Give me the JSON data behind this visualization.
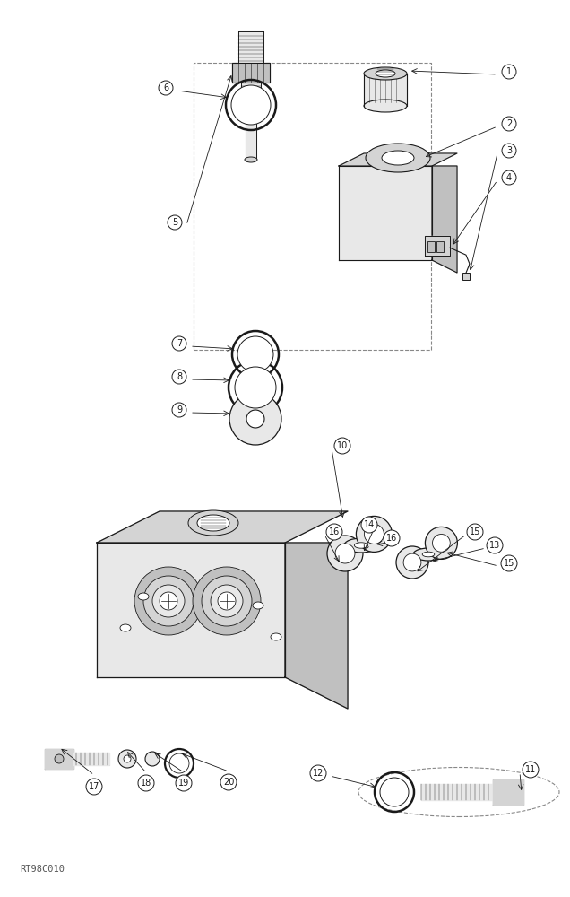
{
  "bg_color": "#ffffff",
  "figure_size": [
    6.36,
    10.0
  ],
  "dpi": 100,
  "watermark": "RT98C010",
  "lc": "#1a1a1a",
  "fc_light": "#e8e8e8",
  "fc_mid": "#d4d4d4",
  "fc_dark": "#c0c0c0"
}
